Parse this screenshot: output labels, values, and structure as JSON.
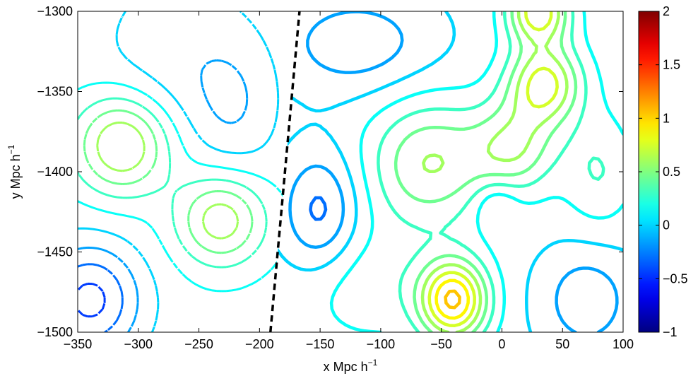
{
  "chart_data": {
    "type": "contour",
    "xlabel": "x Mpc h",
    "xlabel_exp": "−1",
    "ylabel": "y Mpc h",
    "ylabel_exp": "−1",
    "xlim": [
      -350,
      100
    ],
    "ylim": [
      -1500,
      -1300
    ],
    "xticks": [
      -350,
      -300,
      -250,
      -200,
      -150,
      -100,
      -50,
      0,
      50,
      100
    ],
    "xtick_labels": [
      "−350",
      "−300",
      "−250",
      "−200",
      "−150",
      "−100",
      "−50",
      "0",
      "50",
      "100"
    ],
    "yticks": [
      -1300,
      -1350,
      -1400,
      -1450,
      -1500
    ],
    "ytick_labels": [
      "−1300",
      "−1350",
      "−1400",
      "−1450",
      "−1500"
    ],
    "colorbar": {
      "colormap": "jet",
      "range": [
        -1,
        2
      ],
      "ticks": [
        2,
        1.5,
        1,
        0.5,
        0,
        -0.5,
        -1
      ],
      "tick_labels": [
        "2",
        "1.5",
        "1",
        "0.5",
        "0",
        "−0.5",
        "−1"
      ]
    },
    "boundary_line": {
      "style": "dashed",
      "color": "#000000",
      "points": [
        [
          -191,
          -1500
        ],
        [
          -167,
          -1300
        ]
      ]
    },
    "left_region_style": "dashed",
    "right_region_style": "solid",
    "left_blobs": [
      {
        "x": -313,
        "y": -1383,
        "amp": 0.7,
        "sx": 28,
        "sy": 22
      },
      {
        "x": -232,
        "y": -1430,
        "amp": 0.6,
        "sx": 26,
        "sy": 20
      },
      {
        "x": -270,
        "y": -1330,
        "amp": -0.2,
        "sx": 45,
        "sy": 40
      },
      {
        "x": -340,
        "y": -1480,
        "amp": -0.6,
        "sx": 30,
        "sy": 25
      },
      {
        "x": -220,
        "y": -1360,
        "amp": -0.2,
        "sx": 25,
        "sy": 30
      }
    ],
    "right_blobs": [
      {
        "x": -40,
        "y": -1480,
        "amp": 1.0,
        "sx": 20,
        "sy": 18
      },
      {
        "x": 35,
        "y": -1345,
        "amp": 0.75,
        "sx": 22,
        "sy": 18
      },
      {
        "x": 30,
        "y": -1300,
        "amp": 0.8,
        "sx": 18,
        "sy": 14
      },
      {
        "x": -60,
        "y": -1395,
        "amp": 0.55,
        "sx": 35,
        "sy": 28
      },
      {
        "x": 10,
        "y": -1385,
        "amp": 0.5,
        "sx": 25,
        "sy": 20
      },
      {
        "x": -5,
        "y": -1420,
        "amp": -0.2,
        "sx": 13,
        "sy": 11
      },
      {
        "x": -120,
        "y": -1320,
        "amp": -0.3,
        "sx": 45,
        "sy": 22
      },
      {
        "x": -150,
        "y": -1425,
        "amp": -0.4,
        "sx": 22,
        "sy": 26
      },
      {
        "x": 70,
        "y": -1480,
        "amp": -0.3,
        "sx": 28,
        "sy": 24
      },
      {
        "x": -110,
        "y": -1470,
        "amp": 0.2,
        "sx": 40,
        "sy": 25
      },
      {
        "x": 80,
        "y": -1400,
        "amp": 0.25,
        "sx": 20,
        "sy": 25
      }
    ],
    "left_base": 0.1,
    "right_base": 0.05,
    "left_levels": [
      -0.75,
      -0.6,
      -0.45,
      -0.3,
      -0.15,
      0,
      0.15,
      0.3,
      0.45,
      0.6,
      0.75,
      0.9
    ],
    "right_levels": [
      -0.45,
      -0.3,
      -0.15,
      0,
      0.15,
      0.3,
      0.45,
      0.6,
      0.75,
      0.9,
      1.05
    ]
  }
}
